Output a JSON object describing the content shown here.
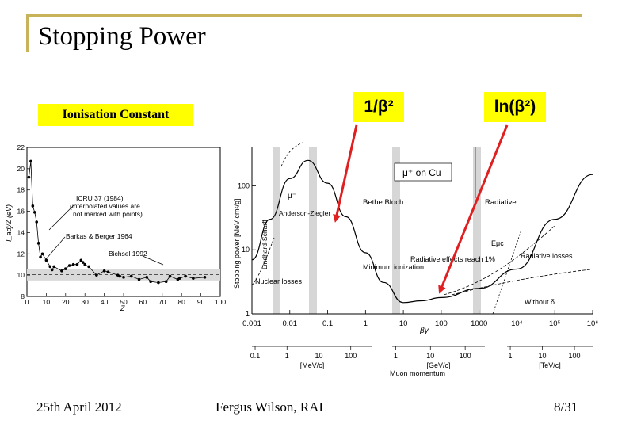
{
  "slide": {
    "title": "Stopping Power",
    "labels": {
      "ionisation": "Ionisation Constant",
      "beta_term": "1/β²",
      "ln_term": "ln(β²)"
    },
    "footer": {
      "date": "25th April 2012",
      "author": "Fergus Wilson, RAL",
      "page": "8/31"
    },
    "colors": {
      "accent": "#c8b25a",
      "highlight": "#ffff00",
      "arrow": "#e02020"
    }
  },
  "chart_data": [
    {
      "type": "scatter",
      "xlabel": "Z",
      "ylabel": "I_adj/Z (eV)",
      "xlim": [
        0,
        100
      ],
      "ylim": [
        8,
        22
      ],
      "x_ticks": [
        "0",
        "10",
        "20",
        "30",
        "40",
        "50",
        "60",
        "70",
        "80",
        "90",
        "100"
      ],
      "y_ticks": [
        "8",
        "10",
        "12",
        "14",
        "16",
        "18",
        "20",
        "22"
      ],
      "annotations": [
        "ICRU 37 (1984)",
        "(interpolated values are",
        "not marked with points)",
        "Barkas & Berger 1964",
        "Bichsel 1992"
      ],
      "points": [
        [
          1,
          19.2
        ],
        [
          2,
          20.7
        ],
        [
          3,
          16.5
        ],
        [
          4,
          15.9
        ],
        [
          5,
          15.0
        ],
        [
          6,
          13.0
        ],
        [
          7,
          11.7
        ],
        [
          8,
          12.0
        ],
        [
          10,
          11.4
        ],
        [
          12,
          10.8
        ],
        [
          13,
          10.5
        ],
        [
          14,
          10.8
        ],
        [
          18,
          10.4
        ],
        [
          20,
          10.6
        ],
        [
          22,
          10.9
        ],
        [
          24,
          11.0
        ],
        [
          26,
          11.0
        ],
        [
          28,
          11.4
        ],
        [
          29,
          11.2
        ],
        [
          30,
          11.0
        ],
        [
          32,
          10.8
        ],
        [
          36,
          10.0
        ],
        [
          40,
          10.4
        ],
        [
          42,
          10.3
        ],
        [
          47,
          10.0
        ],
        [
          48,
          9.9
        ],
        [
          50,
          9.8
        ],
        [
          54,
          9.9
        ],
        [
          58,
          9.6
        ],
        [
          62,
          9.8
        ],
        [
          64,
          9.4
        ],
        [
          68,
          9.3
        ],
        [
          72,
          9.4
        ],
        [
          74,
          9.9
        ],
        [
          78,
          9.6
        ],
        [
          79,
          9.7
        ],
        [
          82,
          9.9
        ],
        [
          86,
          9.7
        ],
        [
          92,
          9.8
        ]
      ],
      "band": [
        9.5,
        10.6
      ]
    },
    {
      "type": "line",
      "title": "μ⁺ on Cu",
      "ylabel": "Stopping power [MeV cm²/g]",
      "xlabel": "βγ",
      "xscale": "log",
      "yscale": "log",
      "x_ticks": [
        "0.001",
        "0.01",
        "0.1",
        "1",
        "10",
        "100",
        "1000",
        "10⁴",
        "10⁵",
        "10⁶"
      ],
      "y_ticks": [
        "1",
        "10",
        "100"
      ],
      "momentum_axes": [
        {
          "ticks": [
            "0.1",
            "1",
            "10",
            "100"
          ],
          "unit": "[MeV/c]"
        },
        {
          "ticks": [
            "1",
            "10",
            "100"
          ],
          "unit": "[GeV/c]"
        },
        {
          "ticks": [
            "1",
            "10",
            "100"
          ],
          "unit": "[TeV/c]"
        }
      ],
      "momentum_label": "Muon momentum",
      "annotations": [
        "μ⁻",
        "Bethe Bloch",
        "Radiative",
        "Anderson-Ziegler",
        "Lindhard-Scharff",
        "Eμc",
        "Minimum ionization",
        "Radiative effects reach 1%",
        "Radiative losses",
        "Nuclear losses",
        "Without δ"
      ],
      "series": [
        {
          "x": [
            0.001,
            0.003,
            0.01,
            0.03,
            0.1,
            0.3,
            1,
            3,
            10,
            30,
            100,
            1000,
            10000,
            100000,
            1000000
          ],
          "y": [
            7,
            30,
            130,
            250,
            110,
            33,
            9,
            3.1,
            1.5,
            1.6,
            1.8,
            2.5,
            5,
            30,
            150
          ]
        }
      ]
    }
  ]
}
